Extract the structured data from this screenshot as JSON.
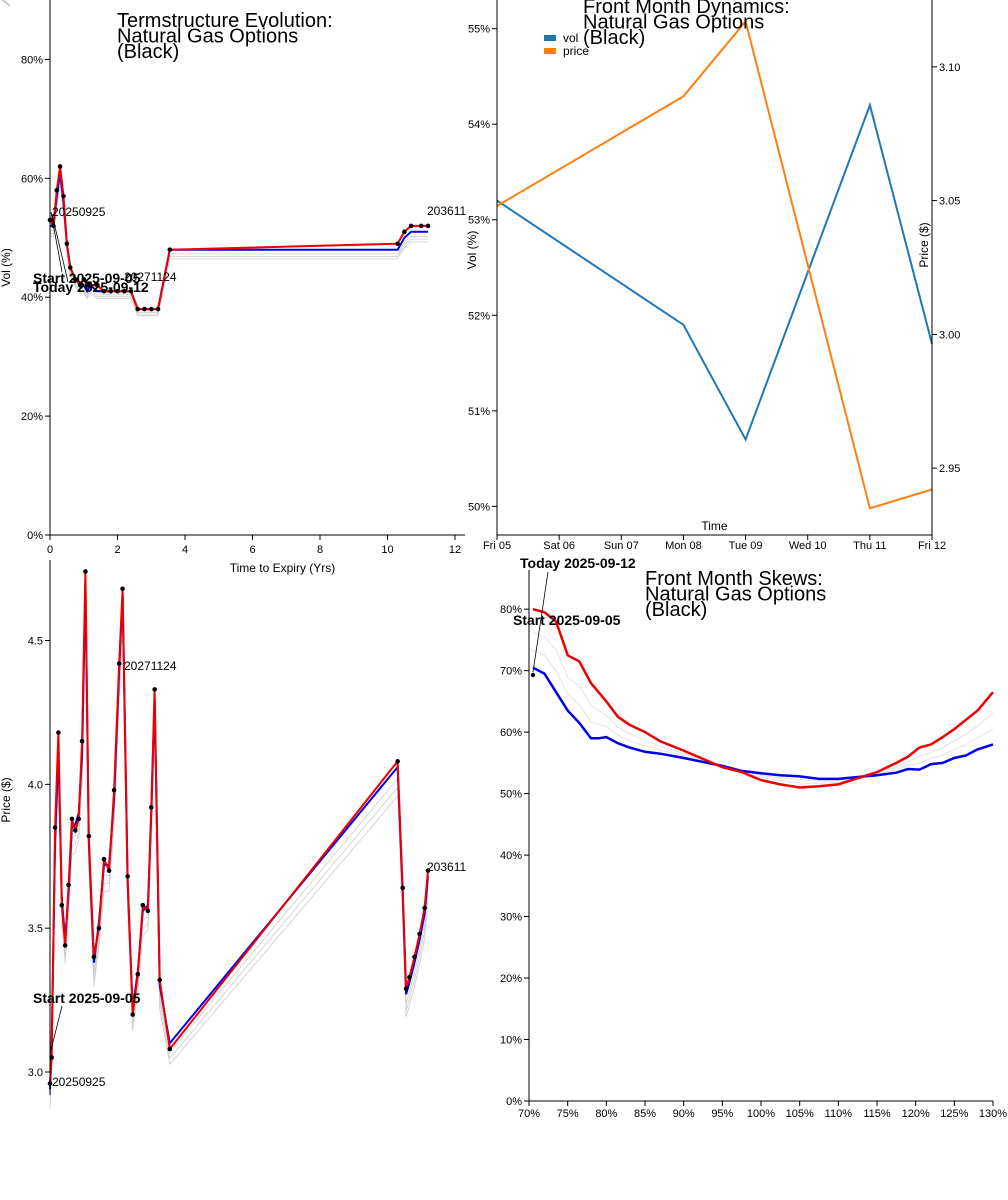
{
  "chart_data": [
    {
      "id": "termstructure",
      "type": "line",
      "title_lines": [
        "Termstructure Evolution:",
        "Natural Gas Options",
        "(Black)"
      ],
      "xlabel": "Time to Expiry (Yrs)",
      "ylabel": "Vol (%)",
      "xlim": [
        0,
        12
      ],
      "ylim": [
        0,
        0.9
      ],
      "xticks": [
        0,
        2,
        4,
        6,
        8,
        10,
        12
      ],
      "yticks": [
        0,
        0.2,
        0.4,
        0.6,
        0.8
      ],
      "ytick_labels": [
        "0%",
        "20%",
        "40%",
        "60%",
        "80%"
      ],
      "series": [
        {
          "color": "#0000ee",
          "x": [
            0.0,
            0.1,
            0.2,
            0.3,
            0.4,
            0.5,
            0.6,
            0.75,
            0.9,
            1.0,
            1.1,
            1.2,
            1.4,
            1.6,
            1.8,
            2.0,
            2.2,
            2.4,
            2.6,
            2.8,
            3.0,
            3.2,
            3.55,
            10.3,
            10.5,
            10.7,
            11.0,
            11.2
          ],
          "y": [
            0.52,
            0.52,
            0.57,
            0.61,
            0.56,
            0.49,
            0.45,
            0.43,
            0.42,
            0.42,
            0.41,
            0.42,
            0.41,
            0.41,
            0.41,
            0.41,
            0.41,
            0.41,
            0.38,
            0.38,
            0.38,
            0.38,
            0.48,
            0.48,
            0.5,
            0.51,
            0.51,
            0.51
          ]
        },
        {
          "color": "#ee0000",
          "x": [
            0.0,
            0.1,
            0.2,
            0.3,
            0.4,
            0.5,
            0.6,
            0.75,
            0.9,
            1.0,
            1.1,
            1.2,
            1.4,
            1.6,
            1.8,
            2.0,
            2.2,
            2.4,
            2.6,
            2.8,
            3.0,
            3.2,
            3.55,
            10.3,
            10.5,
            10.7,
            11.0,
            11.2
          ],
          "y": [
            0.53,
            0.52,
            0.58,
            0.62,
            0.57,
            0.49,
            0.45,
            0.43,
            0.42,
            0.43,
            0.42,
            0.42,
            0.42,
            0.41,
            0.41,
            0.41,
            0.41,
            0.41,
            0.38,
            0.38,
            0.38,
            0.38,
            0.48,
            0.49,
            0.51,
            0.52,
            0.52,
            0.52
          ]
        }
      ],
      "annotations": {
        "left_label": "20250925",
        "mid_label": "20271124",
        "right_label": "203611",
        "start": "Start 2025-09-05",
        "today": "Today 2025-09-12"
      }
    },
    {
      "id": "front_month_dynamics",
      "type": "line",
      "title_lines": [
        "Front Month Dynamics:",
        "Natural Gas Options",
        "(Black)"
      ],
      "xlabel": "Time",
      "ylabel": "Vol (%)",
      "ylabel_right": "Price ($)",
      "categories": [
        "Fri 05",
        "Sat 06",
        "Sun 07",
        "Mon 08",
        "Tue 09",
        "Wed 10",
        "Thu 11",
        "Fri 12"
      ],
      "ylim": [
        0.497,
        0.553
      ],
      "yticks": [
        0.5,
        0.51,
        0.52,
        0.53,
        0.54,
        0.55
      ],
      "ytick_labels": [
        "50%",
        "51%",
        "52%",
        "53%",
        "54%",
        "55%"
      ],
      "ylim_right": [
        2.925,
        3.125
      ],
      "yticks_right": [
        2.95,
        3.0,
        3.05,
        3.1
      ],
      "ytick_labels_right": [
        "2.95",
        "3.00",
        "3.05",
        "3.10"
      ],
      "legend": [
        "vol",
        "price"
      ],
      "series": [
        {
          "name": "vol",
          "axis": "left",
          "color": "#1f77b4",
          "x": [
            0,
            3,
            4,
            6,
            7
          ],
          "y": [
            0.532,
            0.519,
            0.507,
            0.542,
            0.517
          ]
        },
        {
          "name": "price",
          "axis": "right",
          "color": "#ff7f0e",
          "x": [
            0,
            3,
            4,
            6,
            7
          ],
          "y": [
            3.048,
            3.089,
            3.117,
            2.935,
            2.942
          ]
        }
      ]
    },
    {
      "id": "front_price_termstructure",
      "type": "line",
      "ylabel": "Price ($)",
      "xlim": [
        0,
        12
      ],
      "ylim": [
        2.92,
        4.78
      ],
      "yticks": [
        3.0,
        3.5,
        4.0,
        4.5
      ],
      "ytick_labels": [
        "3.0",
        "3.5",
        "4.0",
        "4.5"
      ],
      "series": [
        {
          "color": "#0000ee",
          "x": [
            0.0,
            0.05,
            0.15,
            0.25,
            0.35,
            0.45,
            0.55,
            0.65,
            0.75,
            0.85,
            0.95,
            1.05,
            1.15,
            1.3,
            1.45,
            1.6,
            1.75,
            1.9,
            2.05,
            2.15,
            2.3,
            2.45,
            2.6,
            2.75,
            2.9,
            3.0,
            3.1,
            3.25,
            3.55,
            10.3,
            10.45,
            10.55,
            10.65,
            10.8,
            10.95,
            11.1,
            11.2
          ],
          "y": [
            2.94,
            3.1,
            3.8,
            4.12,
            3.6,
            3.46,
            3.63,
            3.85,
            3.86,
            3.9,
            4.1,
            4.7,
            3.8,
            3.38,
            3.52,
            3.72,
            3.72,
            3.95,
            4.4,
            4.66,
            3.66,
            3.22,
            3.35,
            3.56,
            3.58,
            3.9,
            4.3,
            3.3,
            3.1,
            4.06,
            3.62,
            3.27,
            3.31,
            3.38,
            3.46,
            3.55,
            3.68
          ]
        },
        {
          "color": "#ee0000",
          "x": [
            0.0,
            0.05,
            0.15,
            0.25,
            0.35,
            0.45,
            0.55,
            0.65,
            0.75,
            0.85,
            0.95,
            1.05,
            1.15,
            1.3,
            1.45,
            1.6,
            1.75,
            1.9,
            2.05,
            2.15,
            2.3,
            2.45,
            2.6,
            2.75,
            2.9,
            3.0,
            3.1,
            3.25,
            3.55,
            10.3,
            10.45,
            10.55,
            10.65,
            10.8,
            10.95,
            11.1,
            11.2
          ],
          "y": [
            2.96,
            3.05,
            3.85,
            4.18,
            3.58,
            3.44,
            3.65,
            3.88,
            3.84,
            3.88,
            4.15,
            4.74,
            3.82,
            3.4,
            3.5,
            3.74,
            3.7,
            3.98,
            4.42,
            4.68,
            3.68,
            3.2,
            3.34,
            3.58,
            3.56,
            3.92,
            4.33,
            3.32,
            3.08,
            4.08,
            3.64,
            3.29,
            3.33,
            3.4,
            3.48,
            3.57,
            3.7
          ]
        }
      ],
      "annotations": {
        "left_label": "20250925",
        "mid_label": "20271124",
        "right_label": "203611",
        "start": "Start 2025-09-05"
      }
    },
    {
      "id": "front_month_skews",
      "type": "line",
      "title_lines": [
        "Front Month Skews:",
        "Natural Gas Options",
        "(Black)"
      ],
      "xlim": [
        0.7,
        1.3
      ],
      "ylim": [
        0,
        0.88
      ],
      "xticks": [
        0.7,
        0.75,
        0.8,
        0.85,
        0.9,
        0.95,
        1.0,
        1.05,
        1.1,
        1.15,
        1.2,
        1.25,
        1.3
      ],
      "xtick_labels": [
        "70%",
        "75%",
        "80%",
        "85%",
        "90%",
        "95%",
        "100%",
        "105%",
        "110%",
        "115%",
        "120%",
        "125%",
        "130%"
      ],
      "yticks": [
        0,
        0.1,
        0.2,
        0.3,
        0.4,
        0.5,
        0.6,
        0.7,
        0.8
      ],
      "ytick_labels": [
        "0%",
        "10%",
        "20%",
        "30%",
        "40%",
        "50%",
        "60%",
        "70%",
        "80%"
      ],
      "series": [
        {
          "color": "#0000ee",
          "x": [
            0.705,
            0.72,
            0.735,
            0.75,
            0.765,
            0.78,
            0.79,
            0.8,
            0.815,
            0.83,
            0.85,
            0.87,
            0.9,
            0.95,
            0.975,
            1.0,
            1.025,
            1.05,
            1.075,
            1.1,
            1.125,
            1.15,
            1.175,
            1.19,
            1.205,
            1.22,
            1.235,
            1.25,
            1.265,
            1.28,
            1.3
          ],
          "y": [
            0.705,
            0.695,
            0.665,
            0.635,
            0.615,
            0.59,
            0.59,
            0.592,
            0.582,
            0.575,
            0.568,
            0.565,
            0.558,
            0.545,
            0.537,
            0.533,
            0.53,
            0.528,
            0.524,
            0.524,
            0.527,
            0.53,
            0.534,
            0.54,
            0.539,
            0.548,
            0.55,
            0.558,
            0.562,
            0.572,
            0.58
          ]
        },
        {
          "color": "#ee0000",
          "x": [
            0.705,
            0.72,
            0.735,
            0.75,
            0.765,
            0.78,
            0.79,
            0.8,
            0.815,
            0.83,
            0.85,
            0.87,
            0.9,
            0.95,
            0.975,
            1.0,
            1.025,
            1.05,
            1.075,
            1.1,
            1.125,
            1.15,
            1.175,
            1.19,
            1.205,
            1.22,
            1.235,
            1.25,
            1.265,
            1.28,
            1.3
          ],
          "y": [
            0.8,
            0.795,
            0.78,
            0.725,
            0.715,
            0.68,
            0.665,
            0.65,
            0.625,
            0.612,
            0.6,
            0.585,
            0.57,
            0.543,
            0.535,
            0.522,
            0.515,
            0.51,
            0.512,
            0.515,
            0.525,
            0.535,
            0.55,
            0.56,
            0.575,
            0.58,
            0.592,
            0.605,
            0.62,
            0.635,
            0.665
          ]
        }
      ],
      "annotations": {
        "start": "Start 2025-09-05",
        "today": "Today 2025-09-12"
      }
    }
  ]
}
